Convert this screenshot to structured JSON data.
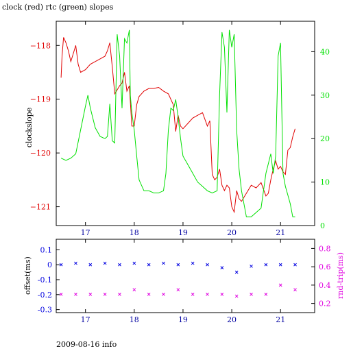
{
  "title": "clock (red) rtc (green) slopes",
  "footer": "2009-08-16 info",
  "colors": {
    "clock": "#e00000",
    "rtc": "#00e000",
    "offset": "#0000e0",
    "rndtrip": "#e000e0",
    "axis": "#000000"
  },
  "chart_data": [
    {
      "type": "line",
      "title": "clock (red) rtc (green) slopes",
      "xlabel": "",
      "ylabel": "clockslope",
      "y2label": "",
      "xlim": [
        16.4,
        21.7
      ],
      "ylim": [
        -121.35,
        -117.55
      ],
      "y2lim": [
        0,
        47
      ],
      "xticks": [
        17,
        18,
        19,
        20,
        21
      ],
      "yticks": [
        -118,
        -119,
        -120,
        -121
      ],
      "y2ticks": [
        0,
        10,
        20,
        30,
        40
      ],
      "series": [
        {
          "name": "clock",
          "axis": "left",
          "x": [
            16.5,
            16.52,
            16.55,
            16.6,
            16.65,
            16.7,
            16.75,
            16.8,
            16.85,
            16.9,
            17.0,
            17.1,
            17.2,
            17.3,
            17.4,
            17.45,
            17.5,
            17.55,
            17.6,
            17.7,
            17.75,
            17.8,
            17.85,
            17.9,
            17.95,
            18.0,
            18.05,
            18.1,
            18.2,
            18.3,
            18.4,
            18.5,
            18.6,
            18.7,
            18.8,
            18.85,
            18.9,
            18.95,
            19.0,
            19.1,
            19.2,
            19.3,
            19.4,
            19.5,
            19.55,
            19.6,
            19.65,
            19.7,
            19.75,
            19.8,
            19.85,
            19.9,
            19.95,
            20.0,
            20.05,
            20.1,
            20.15,
            20.2,
            20.3,
            20.4,
            20.5,
            20.6,
            20.7,
            20.75,
            20.8,
            20.85,
            20.9,
            20.95,
            21.0,
            21.05,
            21.1,
            21.15,
            21.2,
            21.25,
            21.3
          ],
          "y": [
            -118.6,
            -118.2,
            -117.85,
            -117.95,
            -118.1,
            -118.3,
            -118.15,
            -118.0,
            -118.35,
            -118.5,
            -118.45,
            -118.35,
            -118.3,
            -118.25,
            -118.2,
            -118.1,
            -117.95,
            -118.4,
            -118.9,
            -118.75,
            -118.7,
            -118.5,
            -118.85,
            -118.75,
            -119.5,
            -119.5,
            -119.1,
            -118.95,
            -118.85,
            -118.8,
            -118.8,
            -118.78,
            -118.85,
            -118.9,
            -119.1,
            -119.6,
            -119.3,
            -119.5,
            -119.55,
            -119.45,
            -119.35,
            -119.3,
            -119.25,
            -119.5,
            -119.4,
            -120.4,
            -120.5,
            -120.45,
            -120.3,
            -120.6,
            -120.7,
            -120.6,
            -120.65,
            -121.0,
            -121.1,
            -120.7,
            -120.85,
            -120.9,
            -120.75,
            -120.6,
            -120.65,
            -120.55,
            -120.8,
            -120.75,
            -120.5,
            -120.3,
            -120.15,
            -120.3,
            -120.25,
            -120.35,
            -120.4,
            -119.95,
            -119.9,
            -119.7,
            -119.55
          ]
        },
        {
          "name": "rtc",
          "axis": "right",
          "x": [
            16.5,
            16.6,
            16.7,
            16.8,
            16.9,
            17.0,
            17.05,
            17.1,
            17.2,
            17.3,
            17.4,
            17.45,
            17.5,
            17.55,
            17.6,
            17.65,
            17.7,
            17.75,
            17.8,
            17.85,
            17.9,
            17.92,
            17.95,
            18.0,
            18.05,
            18.1,
            18.2,
            18.3,
            18.4,
            18.5,
            18.6,
            18.65,
            18.7,
            18.75,
            18.8,
            18.85,
            18.9,
            18.95,
            19.0,
            19.1,
            19.2,
            19.3,
            19.4,
            19.5,
            19.6,
            19.7,
            19.75,
            19.8,
            19.85,
            19.9,
            19.95,
            20.0,
            20.05,
            20.1,
            20.15,
            20.2,
            20.3,
            20.4,
            20.5,
            20.6,
            20.7,
            20.8,
            20.85,
            20.9,
            20.95,
            21.0,
            21.05,
            21.1,
            21.15,
            21.2,
            21.25,
            21.3
          ],
          "y": [
            15.5,
            15.0,
            15.5,
            16.5,
            22.0,
            27.5,
            30.0,
            27.0,
            22.5,
            20.5,
            20.0,
            20.5,
            28.0,
            19.5,
            19.0,
            44.0,
            39.0,
            27.0,
            43.0,
            42.0,
            45.0,
            30.0,
            26.0,
            22.0,
            16.0,
            10.5,
            8.0,
            8.0,
            7.5,
            7.5,
            8.0,
            12.0,
            22.0,
            27.0,
            26.5,
            29.0,
            25.0,
            20.0,
            16.0,
            14.0,
            12.0,
            10.0,
            9.0,
            8.0,
            7.5,
            8.0,
            30.0,
            44.5,
            41.0,
            26.0,
            45.0,
            41.0,
            44.0,
            22.0,
            13.0,
            8.0,
            2.0,
            2.0,
            3.0,
            4.0,
            12.0,
            16.5,
            12.0,
            16.0,
            39.0,
            42.0,
            12.0,
            9.0,
            7.0,
            5.0,
            2.0,
            2.0
          ]
        }
      ]
    },
    {
      "type": "scatter",
      "xlabel": "",
      "ylabel": "offset(ms)",
      "y2label": "rnd-trip(ms)",
      "xlim": [
        16.4,
        21.7
      ],
      "ylim": [
        -0.32,
        0.17
      ],
      "y2lim": [
        0.1,
        0.9
      ],
      "xticks": [
        17,
        18,
        19,
        20,
        21
      ],
      "yticks": [
        0.1,
        0,
        -0.1,
        -0.2,
        -0.3
      ],
      "yticklabels": [
        "0.1",
        "0",
        "-0.1",
        "-0.2",
        "-0.3"
      ],
      "y2ticks": [
        0.2,
        0.4,
        0.6,
        0.8
      ],
      "series": [
        {
          "name": "offset",
          "axis": "left",
          "x": [
            16.5,
            16.8,
            17.1,
            17.4,
            17.7,
            18.0,
            18.3,
            18.6,
            18.9,
            19.2,
            19.5,
            19.8,
            20.1,
            20.4,
            20.7,
            21.0,
            21.3
          ],
          "y": [
            0.0,
            0.01,
            0.0,
            0.01,
            0.0,
            0.01,
            0.0,
            0.01,
            0.0,
            0.01,
            0.0,
            -0.02,
            -0.05,
            -0.01,
            0.0,
            0.0,
            0.0
          ]
        },
        {
          "name": "rnd-trip",
          "axis": "right",
          "x": [
            16.5,
            16.8,
            17.1,
            17.4,
            17.7,
            18.0,
            18.3,
            18.6,
            18.9,
            19.2,
            19.5,
            19.8,
            20.1,
            20.4,
            20.7,
            21.0,
            21.3
          ],
          "y": [
            0.3,
            0.3,
            0.3,
            0.3,
            0.3,
            0.35,
            0.3,
            0.3,
            0.35,
            0.3,
            0.3,
            0.3,
            0.28,
            0.3,
            0.3,
            0.4,
            0.35
          ]
        }
      ]
    }
  ]
}
